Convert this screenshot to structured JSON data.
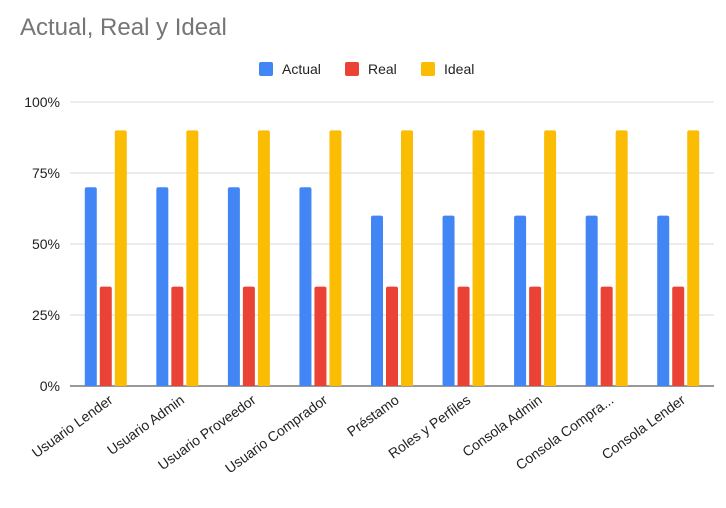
{
  "chart_data": {
    "type": "bar",
    "title": "Actual, Real y Ideal",
    "categories": [
      "Usuario Lender",
      "Usuario Admin",
      "Usuario Proveedor",
      "Usuario Comprador",
      "Préstamo",
      "Roles y Perfiles",
      "Consola Admin",
      "Consola Compra...",
      "Consola Lender"
    ],
    "series": [
      {
        "name": "Actual",
        "color": "#4285f4",
        "values": [
          0.7,
          0.7,
          0.7,
          0.7,
          0.6,
          0.6,
          0.6,
          0.6,
          0.6
        ]
      },
      {
        "name": "Real",
        "color": "#ea4335",
        "values": [
          0.35,
          0.35,
          0.35,
          0.35,
          0.35,
          0.35,
          0.35,
          0.35,
          0.35
        ]
      },
      {
        "name": "Ideal",
        "color": "#fbbc04",
        "values": [
          0.9,
          0.9,
          0.9,
          0.9,
          0.9,
          0.9,
          0.9,
          0.9,
          0.9
        ]
      }
    ],
    "ylim": [
      0,
      1
    ],
    "yticks": [
      0,
      0.25,
      0.5,
      0.75,
      1.0
    ],
    "ytick_labels": [
      "0%",
      "25%",
      "50%",
      "75%",
      "100%"
    ],
    "legend_position": "top",
    "grid": true
  }
}
